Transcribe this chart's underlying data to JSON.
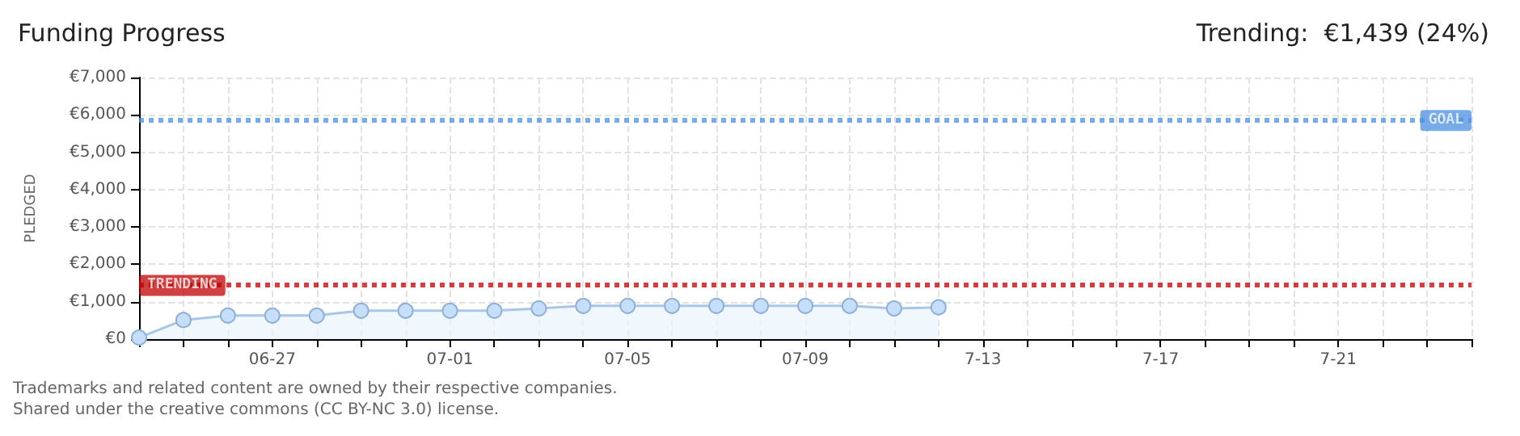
{
  "chart_data": {
    "type": "area",
    "title": "Funding Progress",
    "subtitle": "Trending:  €1,439 (24%)",
    "ylabel": "PLEDGED",
    "annotations": [
      "Trademarks and related content are owned by their respective companies.",
      "Shared under the creative commons (CC BY-NC 3.0) license."
    ],
    "categories": [
      null,
      null,
      null,
      "06-27",
      null,
      null,
      null,
      "07-01",
      null,
      null,
      null,
      "07-05",
      null,
      null,
      null,
      "07-09",
      null,
      null,
      null,
      "7-13",
      null,
      null,
      null,
      "7-17",
      null,
      null,
      null,
      "7-21",
      null,
      null,
      null
    ],
    "series": [
      {
        "color": "#a8c6e8",
        "values": [
          40,
          510,
          630,
          630,
          630,
          760,
          760,
          760,
          760,
          820,
          890,
          890,
          890,
          890,
          890,
          890,
          890,
          820,
          850,
          null,
          null,
          null,
          null,
          null,
          null,
          null,
          null,
          null,
          null,
          null,
          null
        ]
      }
    ],
    "ylim": [
      0,
      7000
    ],
    "yticks": [
      {
        "value": 0,
        "label": "€0"
      },
      {
        "value": 1000,
        "label": "€1,000"
      },
      {
        "value": 2000,
        "label": "€2,000"
      },
      {
        "value": 3000,
        "label": "€3,000"
      },
      {
        "value": 4000,
        "label": "€4,000"
      },
      {
        "value": 5000,
        "label": "€5,000"
      },
      {
        "value": 6000,
        "label": "€6,000"
      },
      {
        "value": 7000,
        "label": "€7,000"
      }
    ],
    "ref_lines": [
      {
        "axis": "y",
        "value": 5850,
        "label": "GOAL",
        "color": "#4a90e2",
        "line_style": "dotted"
      },
      {
        "axis": "y",
        "value": 1439,
        "label": "TRENDING",
        "color": "#c00000",
        "line_style": "dotted"
      }
    ],
    "grid": true,
    "marker": "circle",
    "line_style": "solid"
  }
}
